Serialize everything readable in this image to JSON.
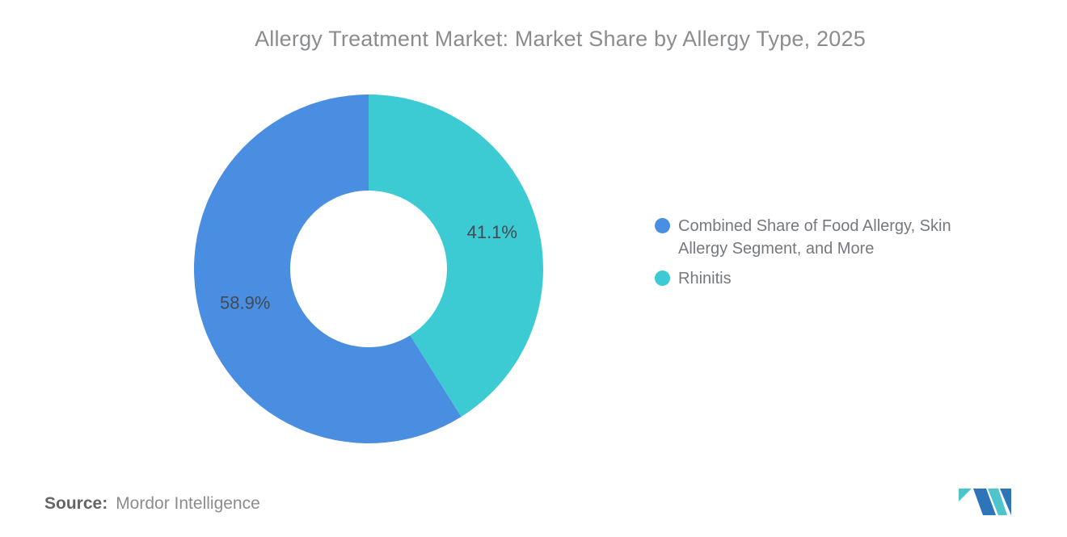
{
  "title": "Allergy Treatment Market: Market Share by Allergy Type, 2025",
  "chart_data": {
    "type": "pie",
    "subtype": "donut",
    "title": "Allergy Treatment Market: Market Share by Allergy Type, 2025",
    "series": [
      {
        "name": "Combined Share of Food Allergy, Skin Allergy Segment, and More",
        "value": 58.9,
        "label": "58.9%",
        "color": "#4a8ee2"
      },
      {
        "name": "Rhinitis",
        "value": 41.1,
        "label": "41.1%",
        "color": "#3ccbd2"
      }
    ],
    "data_labels": "percent",
    "legend_position": "right",
    "inner_radius_ratio": 0.45,
    "start_angle": "top",
    "series_direction": "counterclockwise"
  },
  "footer": {
    "source_label": "Source:",
    "source_value": "Mordor Intelligence"
  },
  "logo": {
    "name": "mordor-intelligence-logomark",
    "blue": "#2d74b8",
    "teal": "#4ec4cc"
  },
  "colors": {
    "background": "#ffffff",
    "title_text": "#8a8d90",
    "legend_text": "#75797e",
    "segment_label_text": "#414b55",
    "source_label_text": "#636569",
    "source_value_text": "#8a8d90"
  }
}
